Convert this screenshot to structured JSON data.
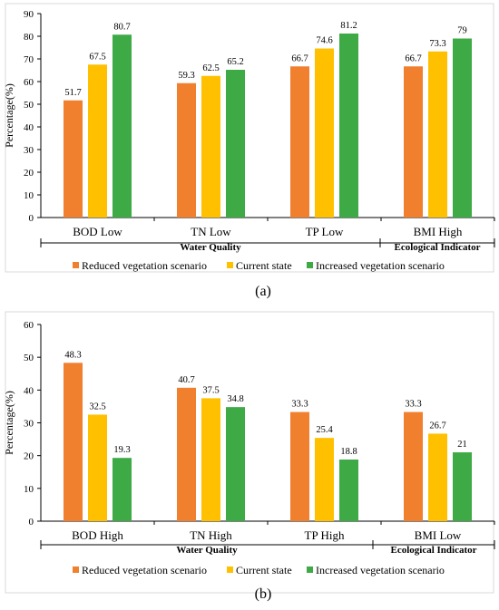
{
  "colors": {
    "reduced": "#F07F2E",
    "current": "#FFC000",
    "increased": "#3DAA46",
    "axis": "#000000",
    "frame": "#D9D9D9"
  },
  "chart_data": [
    {
      "panel_label": "(a)",
      "type": "bar",
      "ylabel": "Percentage(%)",
      "ylim": [
        0,
        90
      ],
      "yticks": [
        0,
        10,
        20,
        30,
        40,
        50,
        60,
        70,
        80,
        90
      ],
      "categories": [
        "BOD Low",
        "TN Low",
        "TP Low",
        "BMI High"
      ],
      "groups": [
        {
          "label": "Water Quality",
          "span": [
            0,
            2
          ]
        },
        {
          "label": "Ecological Indicator",
          "span": [
            3,
            3
          ]
        }
      ],
      "series": [
        {
          "name": "Reduced vegetation scenario",
          "values": [
            51.7,
            59.3,
            66.7,
            66.7
          ]
        },
        {
          "name": "Current state",
          "values": [
            67.5,
            62.5,
            74.6,
            73.3
          ]
        },
        {
          "name": "Increased vegetation scenario",
          "values": [
            80.7,
            65.2,
            81.2,
            79
          ]
        }
      ],
      "legend": "bottom"
    },
    {
      "panel_label": "(b)",
      "type": "bar",
      "ylabel": "Percentage(%)",
      "ylim": [
        0,
        60
      ],
      "yticks": [
        0,
        10,
        20,
        30,
        40,
        50,
        60
      ],
      "categories": [
        "BOD High",
        "TN High",
        "TP High",
        "BMI Low"
      ],
      "groups": [
        {
          "label": "Water Quality",
          "span": [
            0,
            2
          ]
        },
        {
          "label": "Ecological Indicator",
          "span": [
            3,
            3
          ]
        }
      ],
      "series": [
        {
          "name": "Reduced vegetation scenario",
          "values": [
            48.3,
            40.7,
            33.3,
            33.3
          ]
        },
        {
          "name": "Current state",
          "values": [
            32.5,
            37.5,
            25.4,
            26.7
          ]
        },
        {
          "name": "Increased vegetation scenario",
          "values": [
            19.3,
            34.8,
            18.8,
            21
          ]
        }
      ],
      "legend": "bottom"
    }
  ]
}
